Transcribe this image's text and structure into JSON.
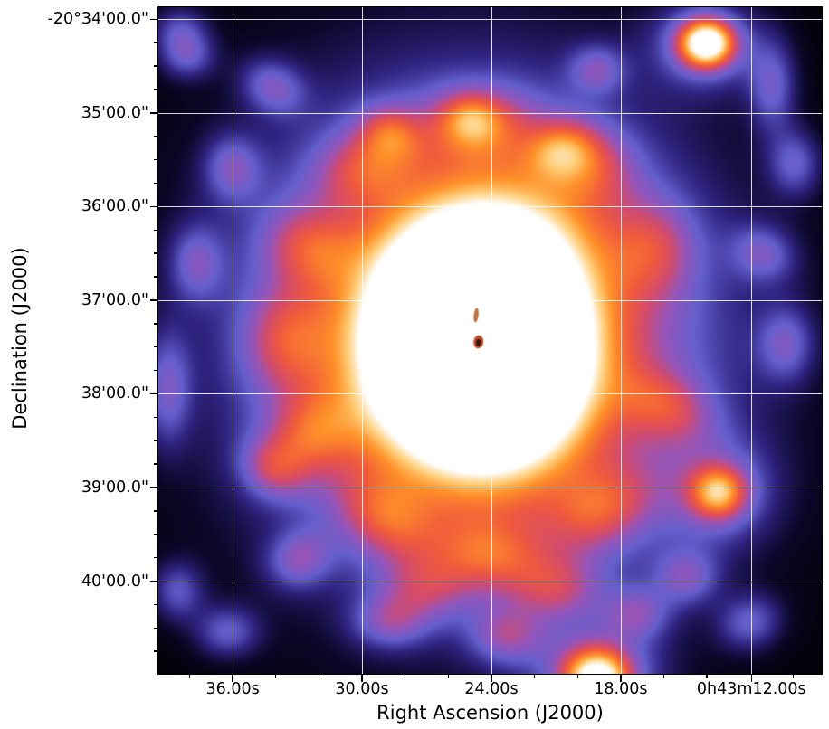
{
  "chart_data": {
    "type": "heatmap",
    "title": "",
    "content_description": "Radio continuum sky map: bright saturated white galaxy core with orange halo and patchy blue-purple extended emission on black background, plus several compact sources; white coordinate grid overlaid",
    "x_axis": {
      "label": "Right Ascension (J2000)",
      "ticks": [
        {
          "f": 0.112,
          "label": "36.00s"
        },
        {
          "f": 0.307,
          "label": "30.00s"
        },
        {
          "f": 0.502,
          "label": "24.00s"
        },
        {
          "f": 0.697,
          "label": "18.00s"
        },
        {
          "f": 0.894,
          "label": "0h43m12.00s"
        }
      ],
      "minor_divisions": 3
    },
    "y_axis": {
      "label": "Declination (J2000)",
      "ticks": [
        {
          "f": 0.018,
          "label": "-20°34'00.0\""
        },
        {
          "f": 0.1585,
          "label": "35'00.0\""
        },
        {
          "f": 0.299,
          "label": "36'00.0\""
        },
        {
          "f": 0.4395,
          "label": "37'00.0\""
        },
        {
          "f": 0.58,
          "label": "38'00.0\""
        },
        {
          "f": 0.7205,
          "label": "39'00.0\""
        },
        {
          "f": 0.861,
          "label": "40'00.0\""
        }
      ],
      "minor_divisions": 4
    },
    "grid": {
      "on": true,
      "color": "#ffffff",
      "opacity": 0.85
    },
    "background": "#000000",
    "frame_color": "#000000",
    "colormap_stops": [
      [
        0.0,
        "#000000"
      ],
      [
        0.1,
        "#0c0628"
      ],
      [
        0.22,
        "#302482"
      ],
      [
        0.34,
        "#645fcd"
      ],
      [
        0.46,
        "#9655b9"
      ],
      [
        0.56,
        "#d24b6e"
      ],
      [
        0.66,
        "#f05a3c"
      ],
      [
        0.78,
        "#ff9128"
      ],
      [
        0.88,
        "#ffcd78"
      ],
      [
        1.0,
        "#ffffff"
      ]
    ],
    "blob_format": [
      "u",
      "v",
      "sigma_x",
      "sigma_y",
      "rot_rad",
      "amplitude"
    ],
    "blobs": [
      [
        0.484,
        0.497,
        0.085,
        0.098,
        -0.3,
        2.5
      ],
      [
        0.484,
        0.497,
        0.19,
        0.205,
        -0.3,
        0.6
      ],
      [
        0.484,
        0.5,
        0.27,
        0.29,
        -0.3,
        0.33
      ],
      [
        0.41,
        0.6,
        0.11,
        0.09,
        0.4,
        0.22
      ],
      [
        0.565,
        0.335,
        0.09,
        0.08,
        0.3,
        0.18
      ],
      [
        0.77,
        0.6,
        0.05,
        0.035,
        0.4,
        0.26
      ],
      [
        0.67,
        0.755,
        0.055,
        0.04,
        -0.4,
        0.3
      ],
      [
        0.5,
        0.825,
        0.06,
        0.038,
        0.1,
        0.32
      ],
      [
        0.345,
        0.77,
        0.055,
        0.04,
        0.5,
        0.3
      ],
      [
        0.225,
        0.645,
        0.05,
        0.04,
        -0.5,
        0.3
      ],
      [
        0.19,
        0.5,
        0.045,
        0.055,
        0.0,
        0.26
      ],
      [
        0.225,
        0.36,
        0.05,
        0.04,
        0.4,
        0.26
      ],
      [
        0.315,
        0.235,
        0.055,
        0.04,
        -0.3,
        0.28
      ],
      [
        0.484,
        0.175,
        0.06,
        0.04,
        0.0,
        0.3
      ],
      [
        0.645,
        0.23,
        0.05,
        0.04,
        0.3,
        0.28
      ],
      [
        0.75,
        0.36,
        0.045,
        0.05,
        0.0,
        0.24
      ],
      [
        0.6,
        0.875,
        0.05,
        0.035,
        0.0,
        0.28
      ],
      [
        0.4,
        0.875,
        0.05,
        0.035,
        0.0,
        0.26
      ],
      [
        0.828,
        0.052,
        0.028,
        0.024,
        0.0,
        0.9
      ],
      [
        0.828,
        0.052,
        0.06,
        0.05,
        0.0,
        0.3
      ],
      [
        0.846,
        0.729,
        0.028,
        0.026,
        0.0,
        0.5
      ],
      [
        0.846,
        0.729,
        0.06,
        0.055,
        0.0,
        0.26
      ],
      [
        0.662,
        1.01,
        0.034,
        0.03,
        0.0,
        0.8
      ],
      [
        0.662,
        1.0,
        0.07,
        0.05,
        0.0,
        0.3
      ],
      [
        0.041,
        0.071,
        0.03,
        0.025,
        0.0,
        0.26
      ],
      [
        0.171,
        0.118,
        0.035,
        0.028,
        0.5,
        0.27
      ],
      [
        0.109,
        0.24,
        0.03,
        0.035,
        0.0,
        0.26
      ],
      [
        0.055,
        0.383,
        0.028,
        0.04,
        0.0,
        0.25
      ],
      [
        0.012,
        0.573,
        0.025,
        0.06,
        0.0,
        0.27
      ],
      [
        0.171,
        0.695,
        0.035,
        0.03,
        0.4,
        0.26
      ],
      [
        0.211,
        0.83,
        0.035,
        0.03,
        -0.4,
        0.27
      ],
      [
        0.348,
        0.925,
        0.04,
        0.028,
        0.0,
        0.26
      ],
      [
        0.525,
        0.945,
        0.04,
        0.03,
        0.0,
        0.28
      ],
      [
        0.348,
        0.186,
        0.032,
        0.028,
        0.3,
        0.26
      ],
      [
        0.471,
        0.166,
        0.03,
        0.026,
        0.0,
        0.24
      ],
      [
        0.607,
        0.213,
        0.035,
        0.028,
        -0.3,
        0.26
      ],
      [
        0.662,
        0.091,
        0.03,
        0.026,
        0.0,
        0.25
      ],
      [
        0.928,
        0.118,
        0.026,
        0.05,
        0.0,
        0.27
      ],
      [
        0.962,
        0.233,
        0.028,
        0.035,
        0.0,
        0.26
      ],
      [
        0.914,
        0.369,
        0.035,
        0.03,
        0.4,
        0.25
      ],
      [
        0.948,
        0.505,
        0.03,
        0.04,
        0.0,
        0.26
      ],
      [
        0.798,
        0.857,
        0.035,
        0.03,
        0.0,
        0.26
      ],
      [
        0.894,
        0.925,
        0.035,
        0.03,
        -0.3,
        0.26
      ],
      [
        0.723,
        0.912,
        0.035,
        0.028,
        0.0,
        0.25
      ],
      [
        0.102,
        0.939,
        0.035,
        0.028,
        0.0,
        0.26
      ],
      [
        0.027,
        0.878,
        0.028,
        0.032,
        0.0,
        0.25
      ],
      [
        0.03,
        0.03,
        0.03,
        0.025,
        0.0,
        0.22
      ]
    ],
    "overlays": [
      {
        "u": 0.479,
        "v": 0.462,
        "rx": 0.0035,
        "ry": 0.011,
        "rot": 0.12,
        "color": "#b45a1e",
        "alpha": 0.85
      },
      {
        "u": 0.4825,
        "v": 0.502,
        "rx": 0.0075,
        "ry": 0.01,
        "rot": 0.12,
        "color": "#b43c14",
        "alpha": 0.9
      },
      {
        "u": 0.4825,
        "v": 0.503,
        "rx": 0.0038,
        "ry": 0.0055,
        "rot": 0.12,
        "color": "#3c0f00",
        "alpha": 0.95
      }
    ]
  }
}
